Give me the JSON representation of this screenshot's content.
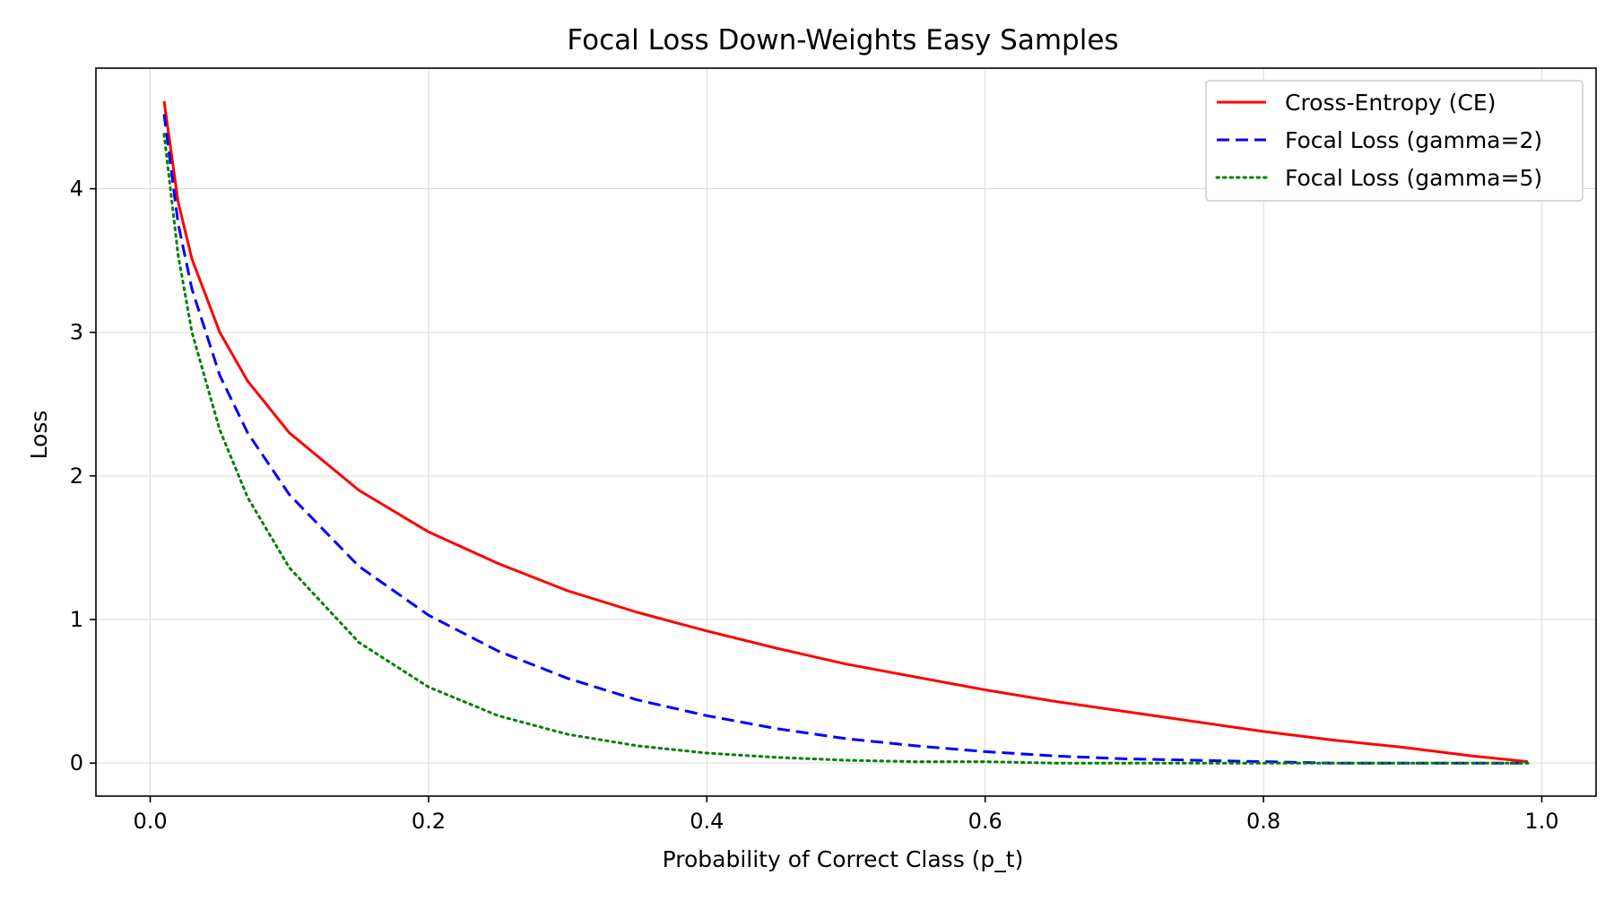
{
  "chart_data": {
    "type": "line",
    "title": "Focal Loss Down-Weights Easy Samples",
    "xlabel": "Probability of Correct Class (p_t)",
    "ylabel": "Loss",
    "xlim": [
      -0.039,
      1.039
    ],
    "ylim": [
      -0.23,
      4.84
    ],
    "xticks": [
      0.0,
      0.2,
      0.4,
      0.6,
      0.8,
      1.0
    ],
    "xtick_labels": [
      "0.0",
      "0.2",
      "0.4",
      "0.6",
      "0.8",
      "1.0"
    ],
    "yticks": [
      0,
      1,
      2,
      3,
      4
    ],
    "ytick_labels": [
      "0",
      "1",
      "2",
      "3",
      "4"
    ],
    "grid": true,
    "legend_position": "top-right",
    "x": [
      0.01,
      0.02,
      0.03,
      0.05,
      0.07,
      0.1,
      0.15,
      0.2,
      0.25,
      0.3,
      0.35,
      0.4,
      0.45,
      0.5,
      0.55,
      0.6,
      0.65,
      0.7,
      0.75,
      0.8,
      0.85,
      0.9,
      0.95,
      0.99
    ],
    "series": [
      {
        "name": "Cross-Entropy (CE)",
        "color": "#ff0000",
        "style": "solid",
        "values": [
          4.61,
          3.91,
          3.51,
          3.0,
          2.66,
          2.3,
          1.9,
          1.61,
          1.39,
          1.2,
          1.05,
          0.92,
          0.8,
          0.69,
          0.6,
          0.51,
          0.43,
          0.36,
          0.29,
          0.22,
          0.16,
          0.11,
          0.05,
          0.01
        ]
      },
      {
        "name": "Focal Loss (gamma=2)",
        "color": "#0000ff",
        "style": "dashed",
        "values": [
          4.52,
          3.76,
          3.3,
          2.7,
          2.3,
          1.87,
          1.37,
          1.03,
          0.78,
          0.59,
          0.44,
          0.33,
          0.24,
          0.17,
          0.12,
          0.08,
          0.05,
          0.03,
          0.02,
          0.01,
          0.0,
          0.0,
          0.0,
          0.0
        ]
      },
      {
        "name": "Focal Loss (gamma=5)",
        "color": "#008000",
        "style": "dotted",
        "values": [
          4.38,
          3.54,
          3.0,
          2.32,
          1.85,
          1.36,
          0.84,
          0.53,
          0.33,
          0.2,
          0.12,
          0.07,
          0.04,
          0.02,
          0.01,
          0.01,
          0.0,
          0.0,
          0.0,
          0.0,
          0.0,
          0.0,
          0.0,
          0.0
        ]
      }
    ]
  }
}
